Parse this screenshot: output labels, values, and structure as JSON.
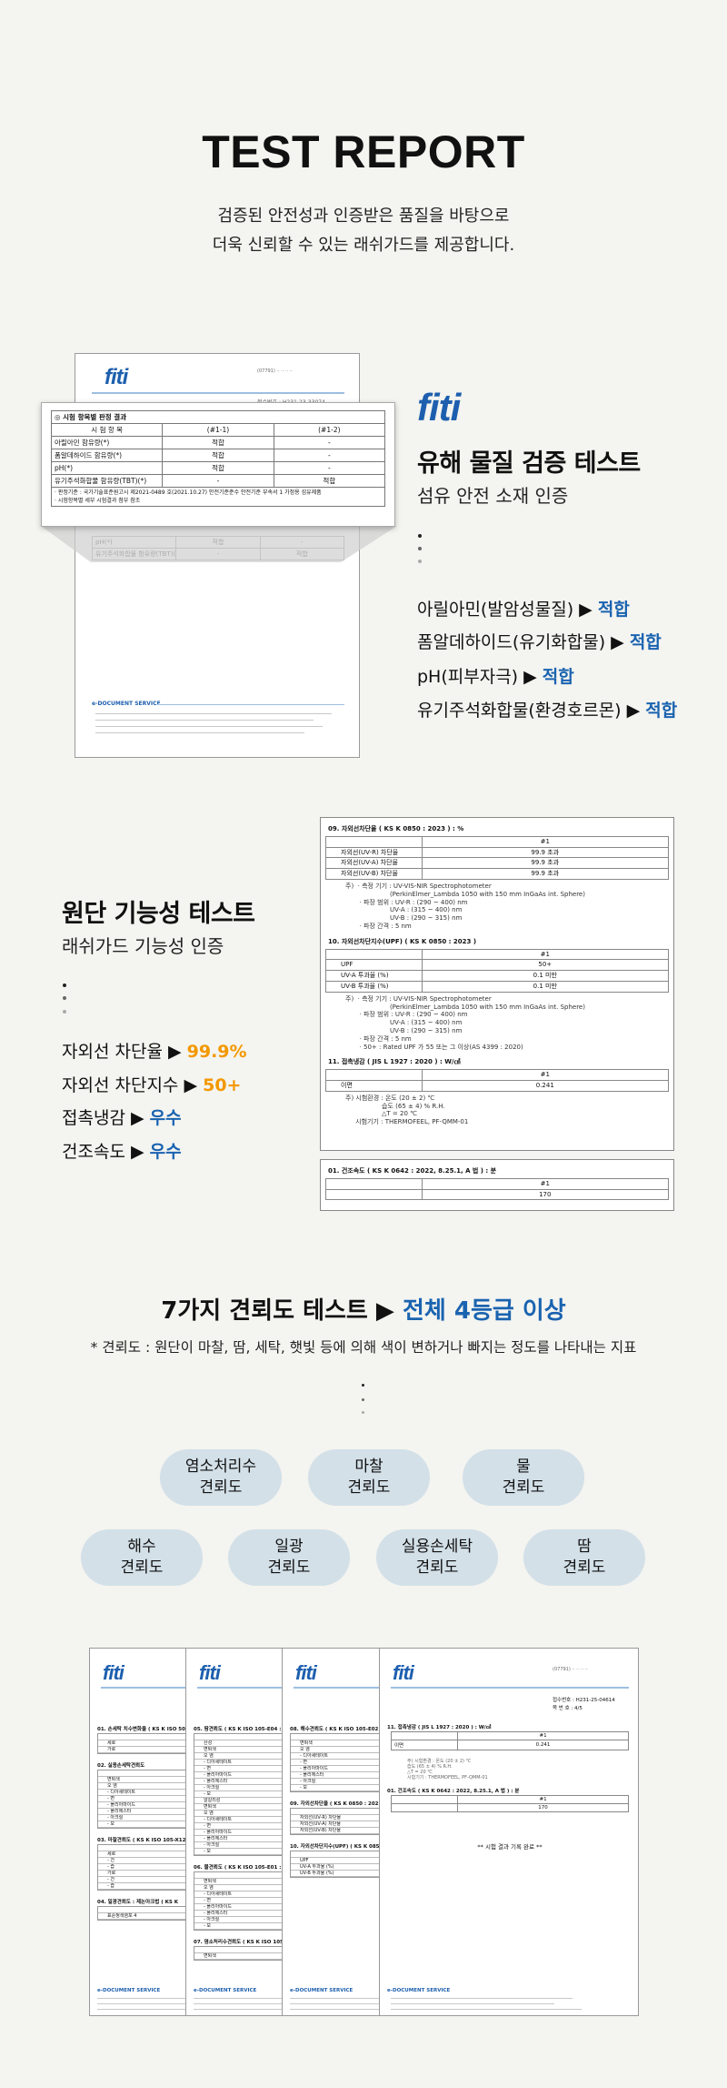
{
  "header": {
    "title": "TEST REPORT",
    "intro_lines": [
      "검증된 안전성과 인증받은 품질을 바탕으로",
      "더욱 신뢰할 수 있는 래쉬가드를 제공합니다."
    ]
  },
  "logo_text": "FITI",
  "colors": {
    "background": "#f4f4f0",
    "blue": "#1a63b0",
    "orange": "#f39800",
    "pill": "#d3e0e8"
  },
  "section1": {
    "heading": "유해 물질 검증 테스트",
    "subheading": "섬유 안전 소재 인증",
    "items": [
      {
        "label": "아릴아민(발암성물질) ▶",
        "value": "적합"
      },
      {
        "label": "폼알데하이드(유기화합물) ▶",
        "value": "적합"
      },
      {
        "label": "pH(피부자극) ▶",
        "value": "적합"
      },
      {
        "label": "유기주석화합물(환경호르몬) ▶",
        "value": "적합"
      }
    ],
    "doc": {
      "receipt": "접수번호 : H231-23-33074",
      "footer": "e-DOCUMENT SERVICE",
      "table_title": "시험 항목별 판정 결과",
      "columns": [
        "시 험 항 목",
        "(#1-1)",
        "(#1-2)"
      ],
      "rows": [
        [
          "아릴아민 함유량(*)",
          "적합",
          "-"
        ],
        [
          "폼알데하이드 함유량(*)",
          "적합",
          "-"
        ],
        [
          "pH(*)",
          "적합",
          "-"
        ],
        [
          "유기주석화합물 함유량(TBT)(*)",
          "-",
          "적합"
        ]
      ],
      "notes": [
        "판정기준 : 국가기술표준원고시 제2021-0489 호(2021.10.27) 안전기준준수 안전기준 부속서 1 가정용 섬유제품",
        "시험항목별 세부 시험결과 첨부 참조"
      ]
    }
  },
  "section2": {
    "heading": "원단 기능성 테스트",
    "subheading": "래쉬가드 기능성 인증",
    "items": [
      {
        "label": "자외선 차단율 ▶",
        "value": "99.9%",
        "tone": "orange"
      },
      {
        "label": "자외선 차단지수 ▶",
        "value": "50+",
        "tone": "orange"
      },
      {
        "label": "접촉냉감 ▶",
        "value": "우수",
        "tone": "blue"
      },
      {
        "label": "건조속도 ▶",
        "value": "우수",
        "tone": "blue"
      }
    ],
    "report": {
      "s09": {
        "title": "09.  자외선차단율 ( KS K 0850 : 2023 ) : %",
        "col": "#1",
        "rows": [
          [
            "자외선(UV-R) 차단율",
            "99.9 초과"
          ],
          [
            "자외선(UV-A) 차단율",
            "99.9 초과"
          ],
          [
            "자외선(UV-B) 차단율",
            "99.9 초과"
          ]
        ],
        "note": "주)  · 측정 기기 : UV-VIS-NIR Spectrophotometer\n                      (PerkinElmer_Lambda 1050 with 150 mm InGaAs int. Sphere)\n       · 파장 범위 : UV-R : (290 ~ 400) nm\n                      UV-A : (315 ~ 400) nm\n                      UV-B : (290 ~ 315) nm\n       · 파장 간격 : 5 nm"
      },
      "s10": {
        "title": "10.  자외선차단지수(UPF) ( KS K 0850 : 2023 )",
        "col": "#1",
        "rows": [
          [
            "UPF",
            "50+"
          ],
          [
            "UV-A 투과율  (%)",
            "0.1 미만"
          ],
          [
            "UV-B 투과율  (%)",
            "0.1 미만"
          ]
        ],
        "note": "주)  · 측정 기기 : UV-VIS-NIR Spectrophotometer\n                      (PerkinElmer_Lambda 1050 with 150 mm InGaAs int. Sphere)\n       · 파장 범위 : UV-R : (290 ~ 400) nm\n                      UV-A : (315 ~ 400) nm\n                      UV-B : (290 ~ 315) nm\n       · 파장 간격 : 5 nm\n       · 50+ : Rated UPF 가 55 또는 그 이상(AS 4399 : 2020)"
      },
      "s11": {
        "title": "11.  접촉냉감  ( JIS L 1927 : 2020 ) : W/㎠",
        "col": "#1",
        "rows": [
          [
            "이면",
            "0.241"
          ]
        ],
        "note": "주) 시험환경 : 온도 (20 ± 2) ℃\n                  습도 (65 ± 4) % R.H.\n                  △T = 20 ℃\n     시험기기 : THERMOFEEL, PF-QMM-01"
      },
      "s01": {
        "title": "01.  건조속도  ( KS K 0642 : 2022, 8.25.1, A 법 ) : 분",
        "col": "#1",
        "rows": [
          [
            "",
            "170"
          ]
        ]
      }
    }
  },
  "section3": {
    "heading_main": "7가지 견뢰도 테스트 ▶",
    "heading_accent": "전체 4등급 이상",
    "note": "* 견뢰도 : 원단이 마찰, 땀, 세탁, 햇빛 등에 의해 색이 변하거나 빠지는 정도를 나타내는 지표",
    "pills": [
      [
        "염소처리수",
        "견뢰도"
      ],
      [
        "마찰",
        "견뢰도"
      ],
      [
        "물",
        "견뢰도"
      ],
      [
        "해수",
        "견뢰도"
      ],
      [
        "일광",
        "견뢰도"
      ],
      [
        "실용손세탁",
        "견뢰도"
      ],
      [
        "땀",
        "견뢰도"
      ]
    ]
  },
  "section4": {
    "pages": [
      {
        "blocks": [
          {
            "title": "01. 손세탁 치수변화율 ( KS K ISO 5077",
            "rows": [
              "세로",
              "가로"
            ]
          },
          {
            "title": "02. 실용손세탁견뢰도",
            "rows": [
              "변퇴색",
              "오 염",
              "- 디아세테이트",
              "- 면",
              "- 폴리아마이드",
              "- 폴리에스터",
              "- 아크릴",
              "- 모"
            ]
          },
          {
            "title": "03. 마찰견뢰도 ( KS K ISO 105-X12",
            "rows": [
              "세로",
              "- 건",
              "- 습",
              "가로",
              "- 건",
              "- 습"
            ]
          },
          {
            "title": "04. 일광견뢰도 : 제논아크법 ( KS K",
            "rows": [
              "표준청색염포 4"
            ]
          }
        ]
      },
      {
        "blocks": [
          {
            "title": "05. 땀견뢰도 ( KS K ISO 105-E04 : 20",
            "rows": [
              "산성",
              "변퇴색",
              "오 염",
              "- 디아세테이트",
              "- 면",
              "- 폴리아마이드",
              "- 폴리에스터",
              "- 아크릴",
              "- 모",
              "알칼리성",
              "변퇴색",
              "오 염",
              "- 디아세테이트",
              "- 면",
              "- 폴리아마이드",
              "- 폴리에스터",
              "- 아크릴",
              "- 모"
            ]
          },
          {
            "title": "06. 물견뢰도 ( KS K ISO 105-E01 : 20",
            "rows": [
              "변퇴색",
              "오 염",
              "- 디아세테이트",
              "- 면",
              "- 폴리아마이드",
              "- 폴리에스터",
              "- 아크릴",
              "- 모"
            ]
          },
          {
            "title": "07. 염소처리수견뢰도 ( KS K ISO 105-",
            "rows": [
              "변퇴색"
            ]
          }
        ]
      },
      {
        "blocks": [
          {
            "title": "08. 해수견뢰도 ( KS K ISO 105-E02",
            "rows": [
              "변퇴색",
              "오 염",
              "- 디아세테이트",
              "- 면",
              "- 폴리아마이드",
              "- 폴리에스터",
              "- 아크릴",
              "- 모"
            ]
          },
          {
            "title": "09. 자외선차단율 ( KS K 0850 : 2023",
            "rows": [
              "자외선(UV-R) 차단율",
              "자외선(UV-A) 차단율",
              "자외선(UV-B) 차단율"
            ]
          },
          {
            "title": "10. 자외선차단지수(UPF) ( KS K 0850",
            "rows": [
              "UPF",
              "UV-A 투과율 (%)",
              "UV-B 투과율 (%)"
            ]
          }
        ]
      }
    ],
    "last_page": {
      "receipt": "접수번호 : H231-25-04614",
      "page_no": "쪽 번 호 : 4/5",
      "s11_title": "11. 접촉냉감 ( JIS L 1927 : 2020 ) : W/㎠",
      "s11_rows": [
        [
          "",
          "#1"
        ],
        [
          "이면",
          "0.241"
        ]
      ],
      "s01_title": "01. 건조속도 ( KS K 0642 : 2022, 8.25.1, A 법 ) : 분",
      "s01_rows": [
        [
          "",
          "#1"
        ],
        [
          "",
          "170"
        ]
      ],
      "end": "** 시험 결과 기록 완료 **"
    },
    "footer": "e-DOCUMENT SERVICE"
  }
}
